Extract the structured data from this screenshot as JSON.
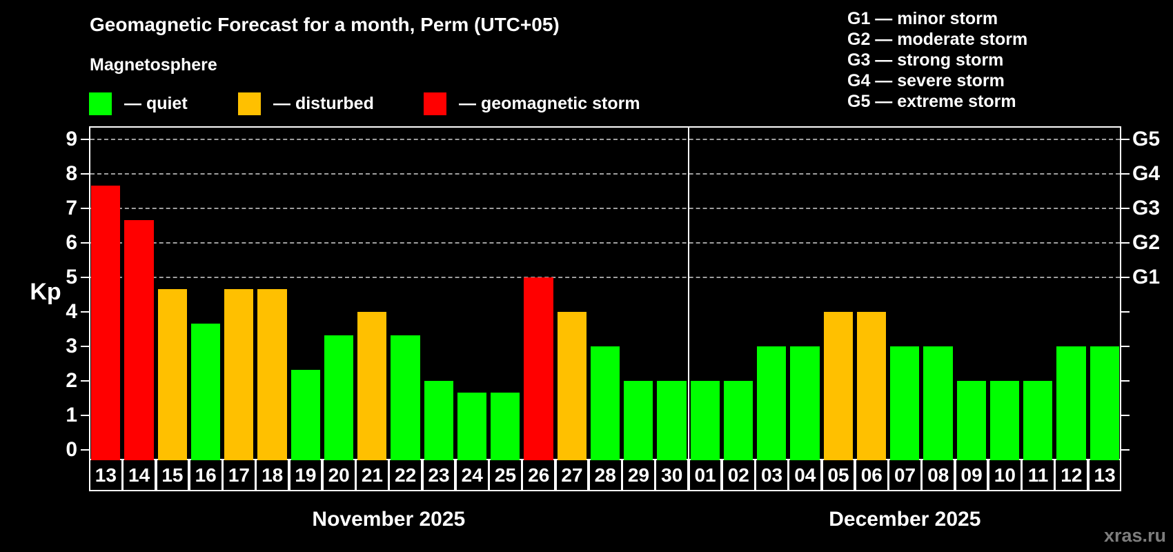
{
  "title": "Geomagnetic Forecast for a month, Perm (UTC+05)",
  "subtitle": "Magnetosphere",
  "legend": {
    "items": [
      {
        "key": "quiet",
        "label": "— quiet",
        "color": "#00ff00"
      },
      {
        "key": "disturbed",
        "label": "— disturbed",
        "color": "#ffc000"
      },
      {
        "key": "storm",
        "label": "— geomagnetic storm",
        "color": "#ff0000"
      }
    ]
  },
  "g_legend": {
    "items": [
      {
        "label": "G1 — minor storm"
      },
      {
        "label": "G2 — moderate storm"
      },
      {
        "label": "G3 — strong storm"
      },
      {
        "label": "G4 — severe storm"
      },
      {
        "label": "G5 — extreme storm"
      }
    ]
  },
  "axes": {
    "y_label": "Kp",
    "y_ticks": [
      0,
      1,
      2,
      3,
      4,
      5,
      6,
      7,
      8,
      9
    ],
    "right_labels": [
      {
        "kp": 5,
        "label": "G1"
      },
      {
        "kp": 6,
        "label": "G2"
      },
      {
        "kp": 7,
        "label": "G3"
      },
      {
        "kp": 8,
        "label": "G4"
      },
      {
        "kp": 9,
        "label": "G5"
      }
    ]
  },
  "colors": {
    "quiet": "#00ff00",
    "disturbed": "#ffc000",
    "storm": "#ff0000",
    "grid": "#a0a0a0",
    "axis": "#ffffff",
    "background": "#000000",
    "watermark": "#7d7d7d"
  },
  "watermark": "xras.ru",
  "chart_data": {
    "type": "bar",
    "title": "Geomagnetic Forecast for a month, Perm (UTC+05)",
    "ylabel": "Kp",
    "ylim": [
      0,
      9
    ],
    "grid_levels": [
      5,
      6,
      7,
      8,
      9
    ],
    "legend_position": "top",
    "categories": [
      "13",
      "14",
      "15",
      "16",
      "17",
      "18",
      "19",
      "20",
      "21",
      "22",
      "23",
      "24",
      "25",
      "26",
      "27",
      "28",
      "29",
      "30",
      "01",
      "02",
      "03",
      "04",
      "05",
      "06",
      "07",
      "08",
      "09",
      "10",
      "11",
      "12",
      "13"
    ],
    "values": [
      7.67,
      6.67,
      4.67,
      3.67,
      4.67,
      4.67,
      2.33,
      3.33,
      4,
      3.33,
      2,
      1.67,
      1.67,
      5,
      4,
      3,
      2,
      2,
      2,
      2,
      3,
      3,
      4,
      4,
      3,
      3,
      2,
      2,
      2,
      3,
      3
    ],
    "statuses": [
      "storm",
      "storm",
      "disturbed",
      "quiet",
      "disturbed",
      "disturbed",
      "quiet",
      "quiet",
      "disturbed",
      "quiet",
      "quiet",
      "quiet",
      "quiet",
      "storm",
      "disturbed",
      "quiet",
      "quiet",
      "quiet",
      "quiet",
      "quiet",
      "quiet",
      "quiet",
      "disturbed",
      "disturbed",
      "quiet",
      "quiet",
      "quiet",
      "quiet",
      "quiet",
      "quiet",
      "quiet"
    ],
    "months": [
      {
        "label": "November 2025",
        "days": 18
      },
      {
        "label": "December 2025",
        "days": 13
      }
    ]
  }
}
